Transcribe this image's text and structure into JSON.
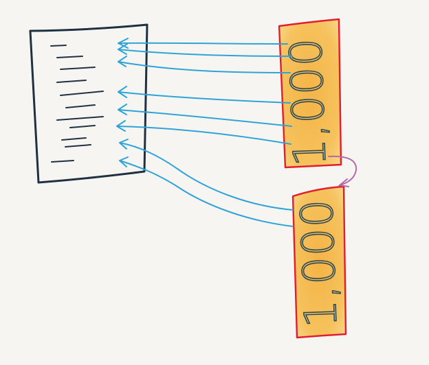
{
  "colors": {
    "background": "#f6f5f2",
    "document_outline": "#1f3040",
    "document_lines": "#1f3040",
    "arrows": "#2ea3d8",
    "block_fill": "#f5b94a",
    "block_outline": "#e11d2e",
    "block_text": "#2a4a5a",
    "link_arrow": "#b36aa7"
  },
  "icons": {
    "document": "document-icon",
    "arrow": "arrow-icon"
  },
  "blocks": [
    {
      "label": "1,000"
    },
    {
      "label": "1,000"
    }
  ]
}
